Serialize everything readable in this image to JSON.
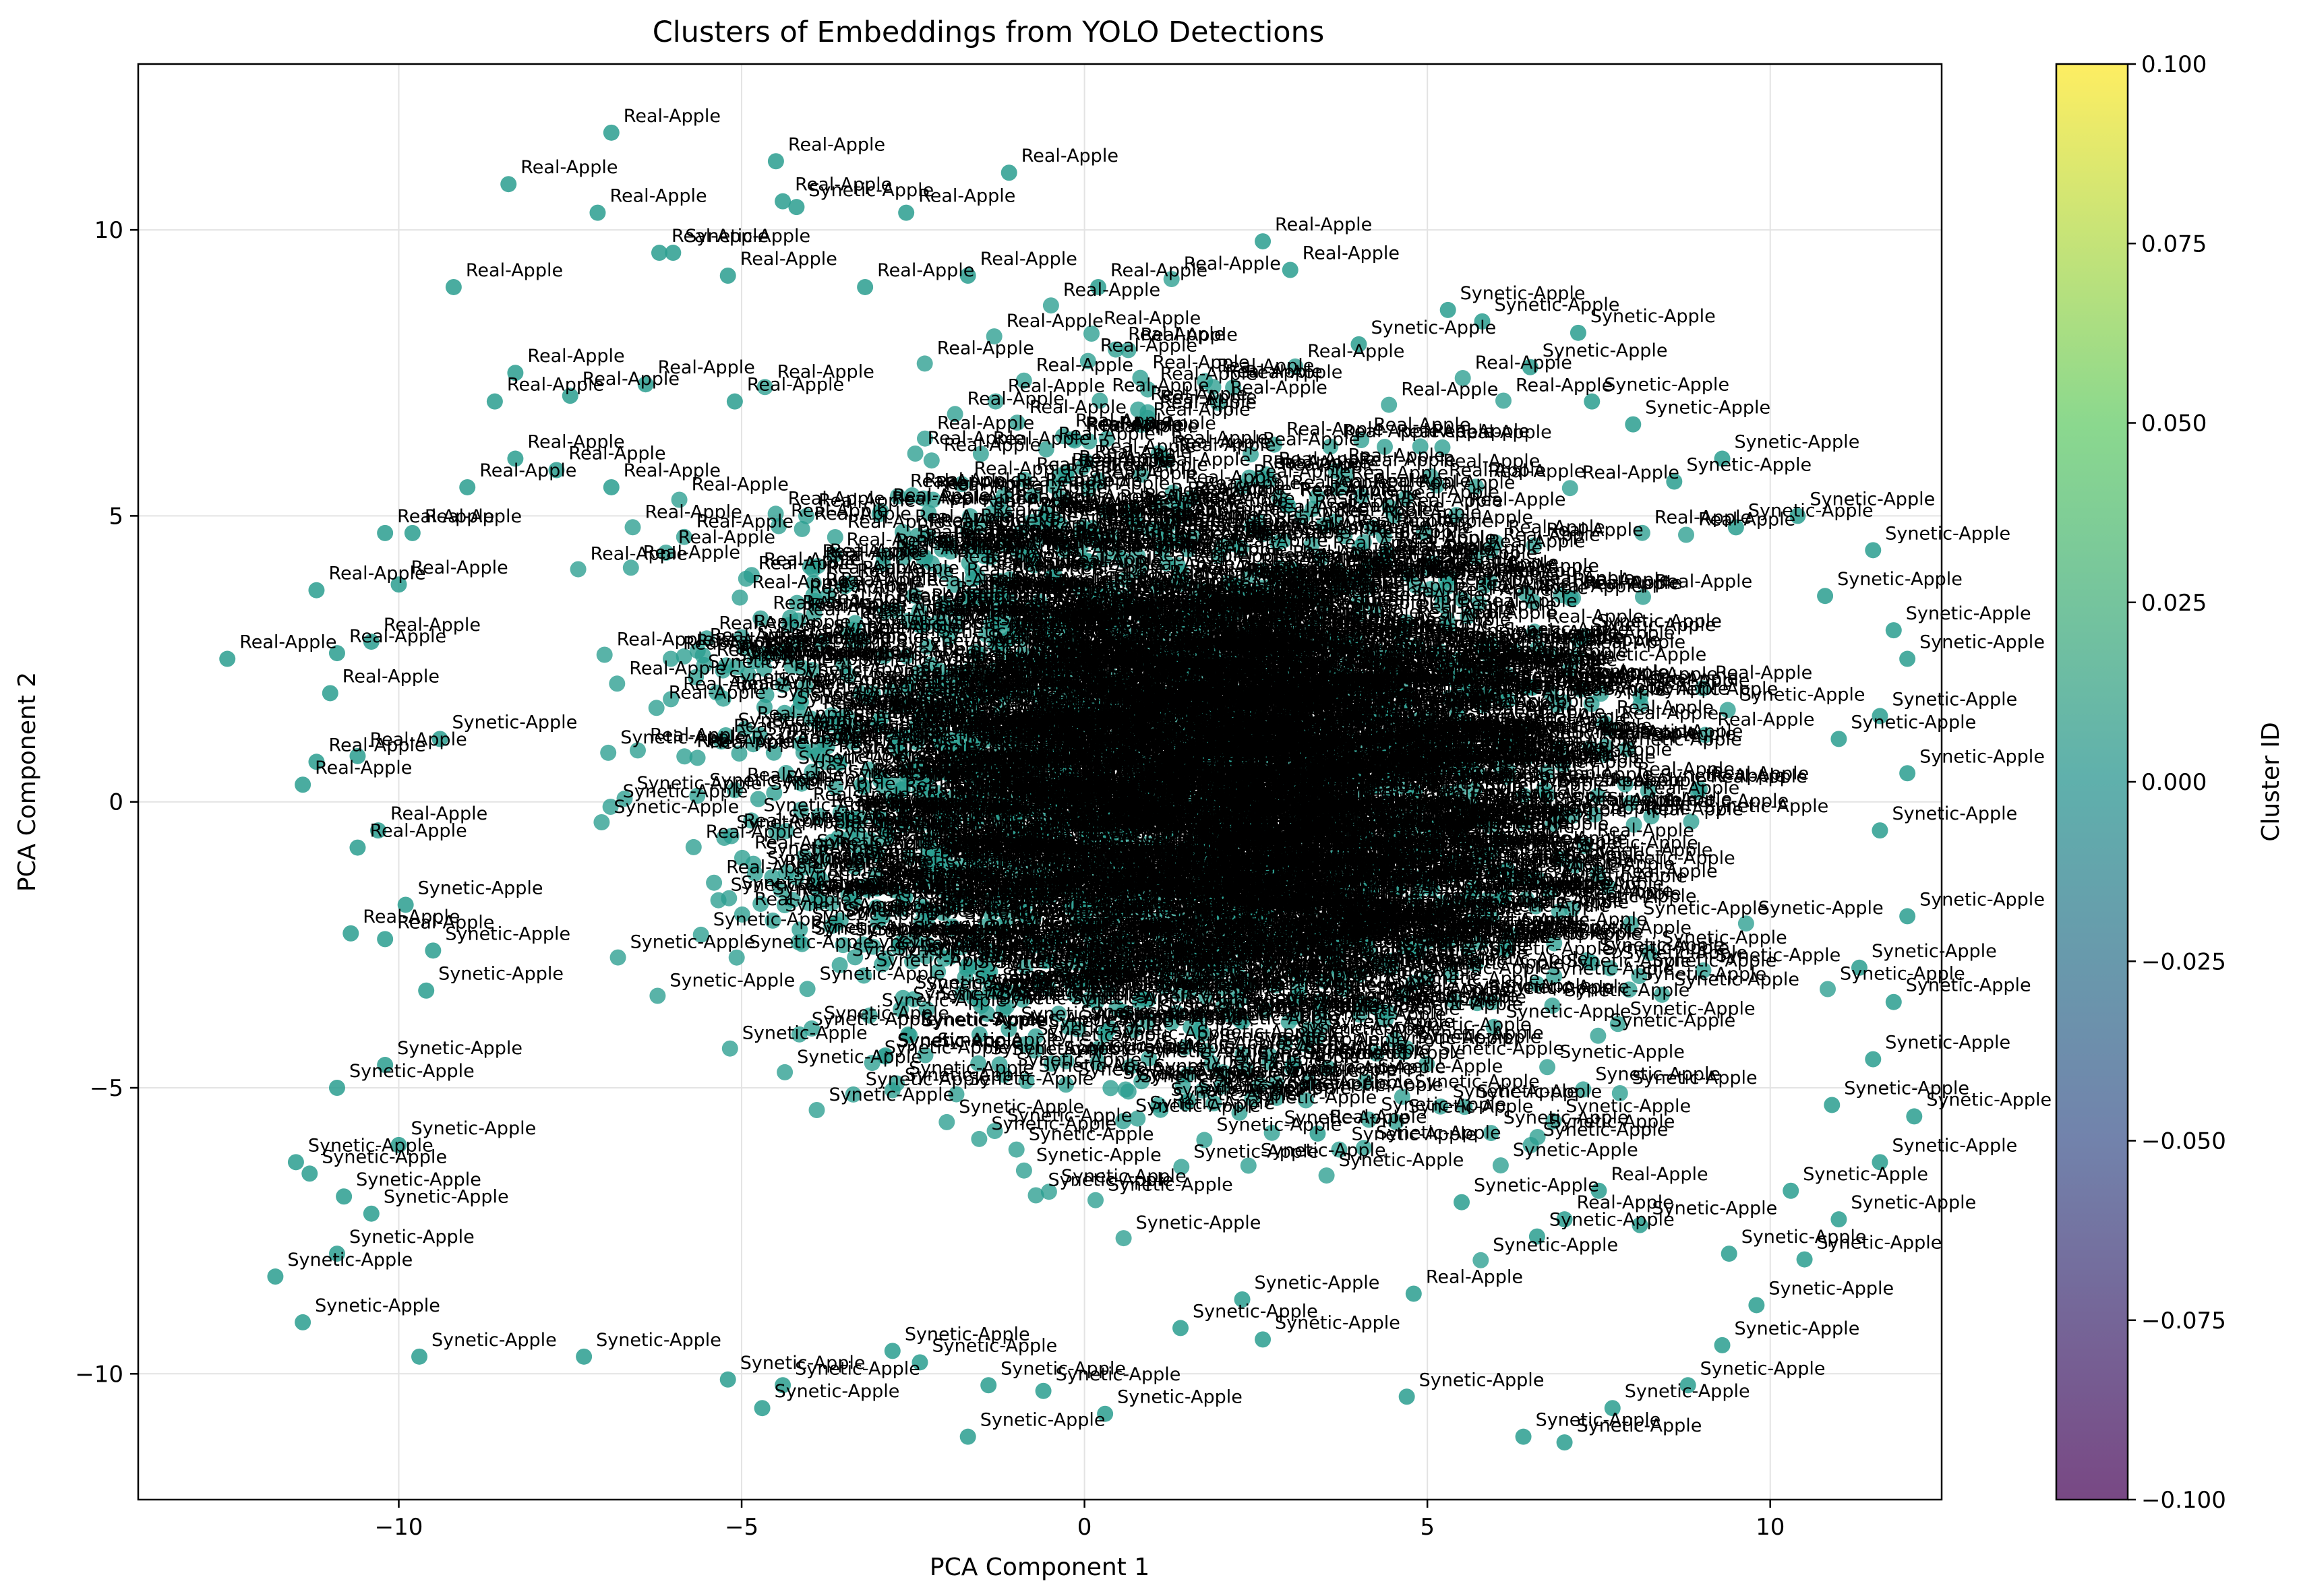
{
  "chart_data": {
    "type": "scatter",
    "title": "Clusters of Embeddings from YOLO Detections",
    "xlabel": "PCA Component 1",
    "ylabel": "PCA Component 2",
    "xlim": [
      -13.8,
      12.5
    ],
    "ylim": [
      -12.2,
      12.9
    ],
    "xticks": [
      -10,
      -5,
      0,
      5,
      10
    ],
    "yticks": [
      -10,
      -5,
      0,
      5,
      10
    ],
    "grid": true,
    "point_color": "#2a9d8f",
    "point_edge": "#2f8f8a",
    "colorbar": {
      "label": "Cluster ID",
      "range": [
        -0.1,
        0.1
      ],
      "ticks": [
        "0.100",
        "0.075",
        "0.050",
        "0.025",
        "0.000",
        "−0.025",
        "−0.050",
        "−0.075",
        "−0.100"
      ],
      "colormap": [
        "#440154",
        "#3b528b",
        "#21918c",
        "#5ec962",
        "#fde725"
      ]
    },
    "categories": [
      "Real-Apple",
      "Synetic-Apple"
    ],
    "series": [
      {
        "name": "Real-Apple",
        "points": [
          [
            -6.9,
            11.7
          ],
          [
            -4.5,
            11.2
          ],
          [
            -1.1,
            11.0
          ],
          [
            -8.4,
            10.8
          ],
          [
            -7.1,
            10.3
          ],
          [
            -4.4,
            10.5
          ],
          [
            -2.6,
            10.3
          ],
          [
            -6.2,
            9.6
          ],
          [
            -9.2,
            9.0
          ],
          [
            2.6,
            9.8
          ],
          [
            3.0,
            9.3
          ],
          [
            -5.2,
            9.2
          ],
          [
            -3.2,
            9.0
          ],
          [
            -1.7,
            9.2
          ],
          [
            0.2,
            9.0
          ],
          [
            -8.6,
            7.0
          ],
          [
            -8.3,
            7.5
          ],
          [
            -7.5,
            7.1
          ],
          [
            -6.4,
            7.3
          ],
          [
            -5.1,
            7.0
          ],
          [
            -8.3,
            6.0
          ],
          [
            -7.7,
            5.8
          ],
          [
            -6.9,
            5.5
          ],
          [
            -9.0,
            5.5
          ],
          [
            -10.2,
            4.7
          ],
          [
            -9.8,
            4.7
          ],
          [
            -10.0,
            3.8
          ],
          [
            -11.2,
            3.7
          ],
          [
            -12.5,
            2.5
          ],
          [
            -10.4,
            2.8
          ],
          [
            -10.9,
            2.6
          ],
          [
            -11.0,
            1.9
          ],
          [
            -10.6,
            0.8
          ],
          [
            -11.2,
            0.7
          ],
          [
            -11.4,
            0.3
          ],
          [
            -10.3,
            -0.5
          ],
          [
            -10.6,
            -0.8
          ],
          [
            -10.2,
            -2.4
          ],
          [
            -10.7,
            -2.3
          ],
          [
            3.4,
            -5.8
          ],
          [
            4.8,
            -8.6
          ],
          [
            7.0,
            -7.3
          ],
          [
            7.5,
            -6.8
          ]
        ]
      },
      {
        "name": "Synetic-Apple",
        "points": [
          [
            -4.2,
            10.4
          ],
          [
            -6.0,
            9.6
          ],
          [
            5.8,
            8.4
          ],
          [
            7.2,
            8.2
          ],
          [
            4.0,
            8.0
          ],
          [
            6.5,
            7.6
          ],
          [
            8.0,
            6.6
          ],
          [
            9.3,
            6.0
          ],
          [
            10.4,
            5.0
          ],
          [
            11.5,
            4.4
          ],
          [
            11.8,
            3.0
          ],
          [
            12.0,
            2.5
          ],
          [
            11.6,
            1.5
          ],
          [
            12.0,
            0.5
          ],
          [
            11.6,
            -0.5
          ],
          [
            12.0,
            -2.0
          ],
          [
            11.8,
            -3.5
          ],
          [
            11.5,
            -4.5
          ],
          [
            12.1,
            -5.5
          ],
          [
            11.6,
            -6.3
          ],
          [
            11.0,
            -7.3
          ],
          [
            10.5,
            -8.0
          ],
          [
            9.8,
            -8.8
          ],
          [
            9.3,
            -9.5
          ],
          [
            8.8,
            -10.2
          ],
          [
            7.7,
            -10.6
          ],
          [
            7.0,
            -11.2
          ],
          [
            6.4,
            -11.1
          ],
          [
            4.7,
            -10.4
          ],
          [
            0.3,
            -10.7
          ],
          [
            -1.7,
            -11.1
          ],
          [
            -4.7,
            -10.6
          ],
          [
            -4.4,
            -10.2
          ],
          [
            -5.2,
            -10.1
          ],
          [
            -7.3,
            -9.7
          ],
          [
            -9.7,
            -9.7
          ],
          [
            -11.4,
            -9.1
          ],
          [
            -11.8,
            -8.3
          ],
          [
            -10.9,
            -7.9
          ],
          [
            -10.4,
            -7.2
          ],
          [
            -10.8,
            -6.9
          ],
          [
            -11.3,
            -6.5
          ],
          [
            -11.5,
            -6.3
          ],
          [
            -10.0,
            -6.0
          ],
          [
            -10.9,
            -5.0
          ],
          [
            -10.2,
            -4.6
          ],
          [
            -9.6,
            -3.3
          ],
          [
            -9.9,
            -1.8
          ],
          [
            -9.4,
            1.1
          ],
          [
            -9.5,
            -2.6
          ],
          [
            -2.8,
            -9.6
          ],
          [
            -2.4,
            -9.8
          ],
          [
            -1.4,
            -10.2
          ],
          [
            -0.6,
            -10.3
          ],
          [
            1.4,
            -9.2
          ],
          [
            2.3,
            -8.7
          ],
          [
            2.6,
            -9.4
          ],
          [
            5.5,
            -7.0
          ],
          [
            6.6,
            -7.6
          ],
          [
            8.1,
            -7.4
          ],
          [
            9.4,
            -7.9
          ],
          [
            10.3,
            -6.8
          ],
          [
            10.9,
            -5.3
          ],
          [
            11.3,
            -2.9
          ],
          [
            11.0,
            1.1
          ],
          [
            10.8,
            3.6
          ],
          [
            9.5,
            4.8
          ],
          [
            8.6,
            5.6
          ],
          [
            7.4,
            7.0
          ],
          [
            5.3,
            8.6
          ]
        ]
      }
    ],
    "dense_cluster": {
      "x_range": [
        -9.5,
        12.0
      ],
      "y_range": [
        -9.0,
        10.0
      ],
      "count": 2400
    }
  }
}
